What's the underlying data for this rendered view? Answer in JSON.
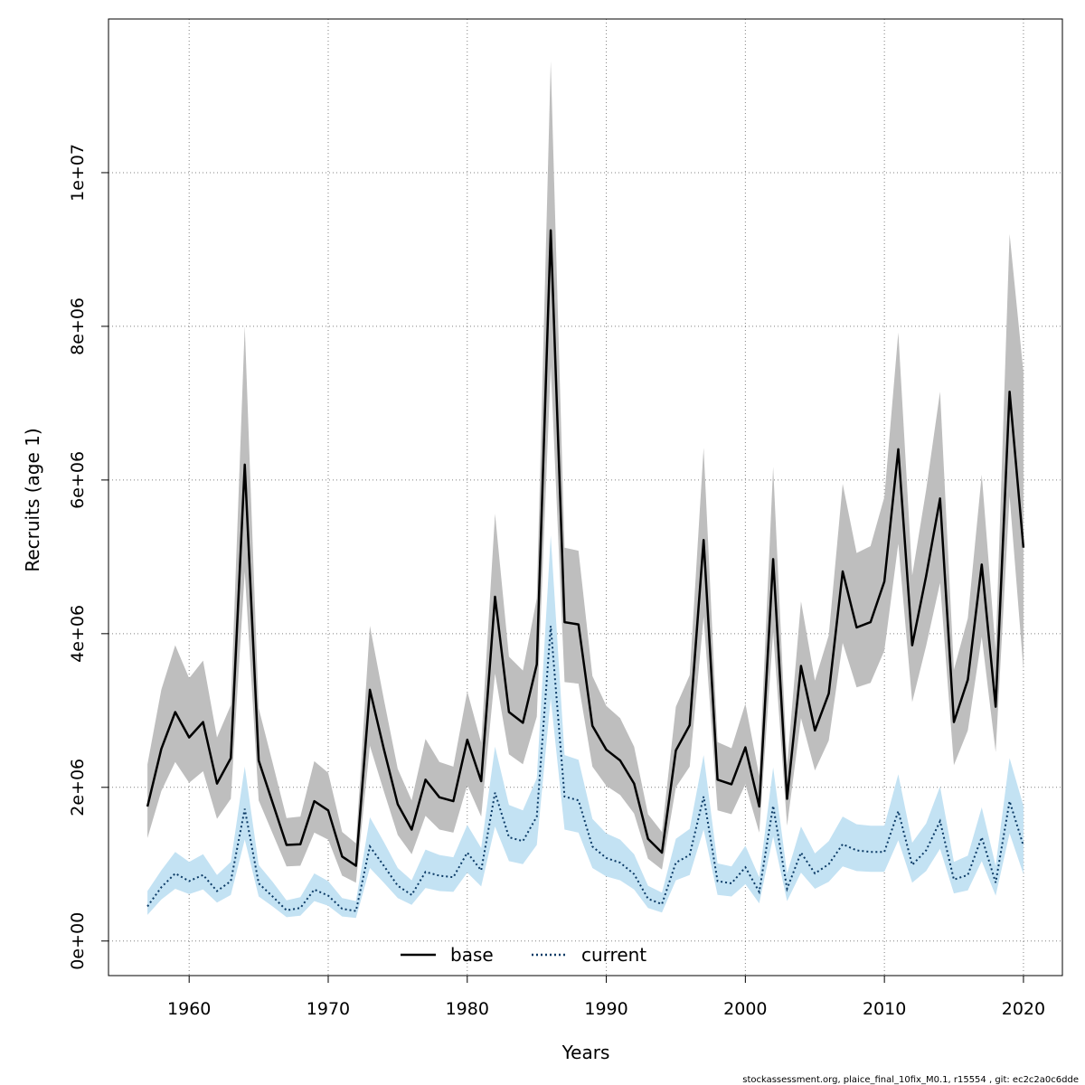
{
  "chart_data": {
    "type": "line",
    "title": "",
    "xlabel": "Years",
    "ylabel": "Recruits (age 1)",
    "xlim": [
      1954.2,
      2022.8
    ],
    "ylim": [
      -450000,
      12000000
    ],
    "x_ticks": [
      1960,
      1970,
      1980,
      1990,
      2000,
      2010,
      2020
    ],
    "x_tick_labels": [
      "1960",
      "1970",
      "1980",
      "1990",
      "2000",
      "2010",
      "2020"
    ],
    "y_ticks": [
      0,
      2000000,
      4000000,
      6000000,
      8000000,
      10000000
    ],
    "y_tick_labels": [
      "0e+00",
      "2e+06",
      "4e+06",
      "6e+06",
      "8e+06",
      "1e+07"
    ],
    "grid": true,
    "legend": {
      "position": "bottom",
      "entries": [
        "base",
        "current"
      ]
    },
    "colors": {
      "base_line": "#000000",
      "base_band": "#bebebe",
      "current_line": "#0b3a66",
      "current_band": "#c3e2f3",
      "grid": "#808080"
    },
    "x": [
      1957,
      1958,
      1959,
      1960,
      1961,
      1962,
      1963,
      1964,
      1965,
      1966,
      1967,
      1968,
      1969,
      1970,
      1971,
      1972,
      1973,
      1974,
      1975,
      1976,
      1977,
      1978,
      1979,
      1980,
      1981,
      1982,
      1983,
      1984,
      1985,
      1986,
      1987,
      1988,
      1989,
      1990,
      1991,
      1992,
      1993,
      1994,
      1995,
      1996,
      1997,
      1998,
      1999,
      2000,
      2001,
      2002,
      2003,
      2004,
      2005,
      2006,
      2007,
      2008,
      2009,
      2010,
      2011,
      2012,
      2013,
      2014,
      2015,
      2016,
      2017,
      2018,
      2019,
      2020
    ],
    "series": [
      {
        "name": "base",
        "style": "solid",
        "values": [
          1750000,
          2500000,
          2980000,
          2650000,
          2850000,
          2050000,
          2380000,
          6200000,
          2350000,
          1800000,
          1250000,
          1260000,
          1820000,
          1700000,
          1100000,
          980000,
          3270000,
          2500000,
          1780000,
          1450000,
          2100000,
          1870000,
          1820000,
          2620000,
          2080000,
          4480000,
          2980000,
          2840000,
          3600000,
          9250000,
          4150000,
          4120000,
          2800000,
          2490000,
          2350000,
          2050000,
          1330000,
          1150000,
          2480000,
          2810000,
          5220000,
          2100000,
          2040000,
          2520000,
          1750000,
          4970000,
          1850000,
          3580000,
          2740000,
          3220000,
          4810000,
          4080000,
          4150000,
          4680000,
          6400000,
          3850000,
          4750000,
          5760000,
          2850000,
          3400000,
          4900000,
          3050000,
          7150000,
          5120000
        ],
        "lower": [
          1340000,
          1950000,
          2330000,
          2060000,
          2210000,
          1590000,
          1850000,
          4810000,
          1830000,
          1400000,
          970000,
          980000,
          1410000,
          1320000,
          850000,
          760000,
          2540000,
          1950000,
          1380000,
          1130000,
          1630000,
          1450000,
          1410000,
          2030000,
          1620000,
          3480000,
          2430000,
          2300000,
          2920000,
          7480000,
          3370000,
          3350000,
          2270000,
          2020000,
          1900000,
          1660000,
          1070000,
          930000,
          2000000,
          2270000,
          4220000,
          1700000,
          1650000,
          2040000,
          1410000,
          4020000,
          1500000,
          2900000,
          2220000,
          2610000,
          3880000,
          3300000,
          3360000,
          3780000,
          5170000,
          3110000,
          3840000,
          4660000,
          2290000,
          2740000,
          3960000,
          2460000,
          5790000,
          3530000
        ],
        "upper": [
          2300000,
          3270000,
          3850000,
          3420000,
          3650000,
          2650000,
          3070000,
          8000000,
          3030000,
          2320000,
          1600000,
          1620000,
          2340000,
          2190000,
          1420000,
          1270000,
          4100000,
          3150000,
          2240000,
          1830000,
          2630000,
          2330000,
          2270000,
          3250000,
          2580000,
          5560000,
          3700000,
          3520000,
          4460000,
          11450000,
          5120000,
          5080000,
          3450000,
          3060000,
          2900000,
          2530000,
          1650000,
          1420000,
          3050000,
          3460000,
          6420000,
          2590000,
          2510000,
          3090000,
          2150000,
          6170000,
          2280000,
          4420000,
          3390000,
          3980000,
          5950000,
          5050000,
          5140000,
          5780000,
          7920000,
          4760000,
          5870000,
          7150000,
          3530000,
          4200000,
          6070000,
          3780000,
          9200000,
          7400000
        ]
      },
      {
        "name": "current",
        "style": "dotted",
        "values": [
          450000,
          700000,
          880000,
          780000,
          860000,
          650000,
          780000,
          1720000,
          750000,
          580000,
          400000,
          430000,
          670000,
          590000,
          420000,
          390000,
          1230000,
          980000,
          720000,
          600000,
          900000,
          850000,
          830000,
          1150000,
          920000,
          1930000,
          1350000,
          1300000,
          1620000,
          4100000,
          1880000,
          1830000,
          1230000,
          1080000,
          1020000,
          870000,
          550000,
          480000,
          1020000,
          1120000,
          1880000,
          780000,
          750000,
          960000,
          640000,
          1760000,
          680000,
          1150000,
          880000,
          1000000,
          1260000,
          1180000,
          1160000,
          1160000,
          1690000,
          990000,
          1180000,
          1560000,
          800000,
          860000,
          1350000,
          760000,
          1820000,
          1240000
        ],
        "lower": [
          340000,
          540000,
          680000,
          610000,
          670000,
          500000,
          600000,
          1320000,
          580000,
          450000,
          310000,
          330000,
          520000,
          460000,
          320000,
          300000,
          950000,
          760000,
          560000,
          470000,
          690000,
          650000,
          640000,
          890000,
          710000,
          1490000,
          1040000,
          1000000,
          1250000,
          3160000,
          1450000,
          1410000,
          950000,
          840000,
          790000,
          670000,
          430000,
          370000,
          790000,
          860000,
          1450000,
          600000,
          580000,
          740000,
          490000,
          1360000,
          520000,
          890000,
          680000,
          770000,
          970000,
          910000,
          900000,
          900000,
          1310000,
          760000,
          910000,
          1200000,
          620000,
          660000,
          1040000,
          590000,
          1400000,
          870000
        ],
        "upper": [
          650000,
          920000,
          1160000,
          1030000,
          1130000,
          860000,
          1030000,
          2270000,
          990000,
          770000,
          530000,
          570000,
          880000,
          780000,
          560000,
          520000,
          1610000,
          1290000,
          950000,
          790000,
          1190000,
          1120000,
          1090000,
          1510000,
          1210000,
          2530000,
          1770000,
          1700000,
          2120000,
          5280000,
          2420000,
          2360000,
          1590000,
          1400000,
          1320000,
          1130000,
          720000,
          630000,
          1330000,
          1460000,
          2420000,
          1010000,
          970000,
          1240000,
          830000,
          2260000,
          880000,
          1490000,
          1140000,
          1300000,
          1620000,
          1520000,
          1500000,
          1500000,
          2170000,
          1280000,
          1530000,
          2010000,
          1030000,
          1110000,
          1740000,
          980000,
          2380000,
          1760000
        ]
      }
    ]
  },
  "footer": {
    "text": "stockassessment.org, plaice_final_10fix_M0.1, r15554 , git: ec2c2a0c6dde"
  }
}
